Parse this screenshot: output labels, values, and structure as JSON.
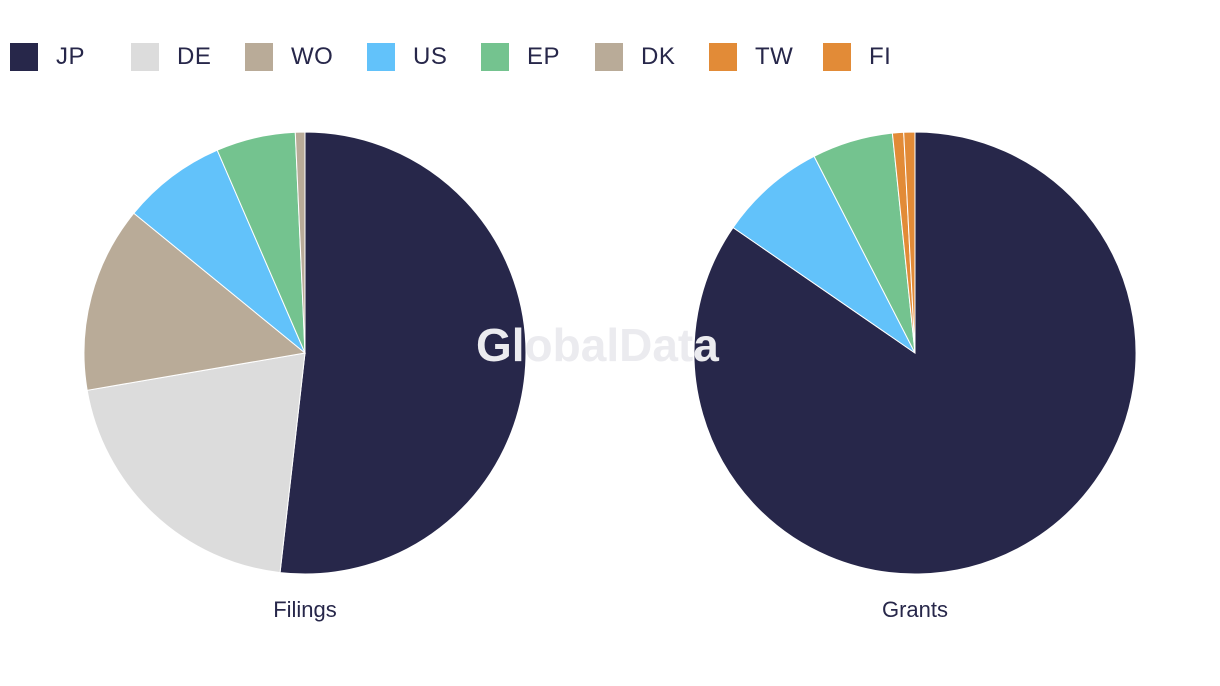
{
  "watermark": "GlobalData",
  "legend": [
    {
      "label": "JP",
      "color": "#27274a"
    },
    {
      "label": "DE",
      "color": "#dcdcdc"
    },
    {
      "label": "WO",
      "color": "#b9ab98"
    },
    {
      "label": "US",
      "color": "#62c2fa"
    },
    {
      "label": "EP",
      "color": "#74c38f"
    },
    {
      "label": "DK",
      "color": "#b9ab98"
    },
    {
      "label": "TW",
      "color": "#e28b37"
    },
    {
      "label": "FI",
      "color": "#e28b37"
    }
  ],
  "chart_data": [
    {
      "type": "pie",
      "title": "Filings",
      "slices": [
        {
          "label": "JP",
          "value": 51.8,
          "color": "#27274a"
        },
        {
          "label": "DE",
          "value": 20.5,
          "color": "#dcdcdc"
        },
        {
          "label": "WO",
          "value": 13.6,
          "color": "#b9ab98"
        },
        {
          "label": "US",
          "value": 7.6,
          "color": "#62c2fa"
        },
        {
          "label": "EP",
          "value": 5.8,
          "color": "#74c38f"
        },
        {
          "label": "DK",
          "value": 0.7,
          "color": "#b9ab98"
        }
      ]
    },
    {
      "type": "pie",
      "title": "Grants",
      "slices": [
        {
          "label": "JP",
          "value": 83.0,
          "color": "#27274a"
        },
        {
          "label": "US",
          "value": 7.7,
          "color": "#62c2fa"
        },
        {
          "label": "EP",
          "value": 5.8,
          "color": "#74c38f"
        },
        {
          "label": "TW",
          "value": 0.8,
          "color": "#e28b37"
        },
        {
          "label": "FI",
          "value": 0.8,
          "color": "#e28b37"
        }
      ]
    }
  ]
}
